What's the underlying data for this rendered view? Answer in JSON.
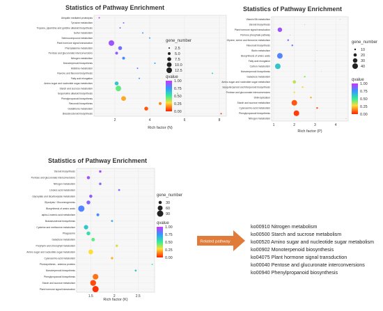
{
  "chart_data": [
    {
      "type": "scatter",
      "title": "Statistics of Pathway Enrichment",
      "xlabel": "Rich factor (N)",
      "xlim": [
        0.8,
        8.4
      ],
      "xticks": [
        2,
        4,
        6,
        8
      ],
      "categories": [
        "Ubiquitin mediated proteolysis",
        "Tyrosine metabolism",
        "Tropane, piperidine and pyridine alkaloid biosynthesis",
        "Sulfur metabolism",
        "Selenocompound metabolism",
        "Plant hormone signal transduction",
        "Phenylalanine metabolism",
        "Pentose and glucuronate interconversions",
        "Nitrogen metabolism",
        "Monoterpenoid biosynthesis",
        "Histidine metabolism",
        "Flavone and flavonol biosynthesis",
        "Fatty acid elongation",
        "Amino sugar and nucleotide sugar metabolism",
        "Starch and sucrose metabolism",
        "Isoquinoline alkaloid biosynthesis",
        "Phenylpropanoid biosynthesis",
        "Flavonoid biosynthesis",
        "Glutathione metabolism",
        "Brassinosteroid biosynthesis"
      ],
      "points": [
        {
          "x": 1.1,
          "size": 2.5,
          "q": 0.95
        },
        {
          "x": 2.5,
          "size": 2.5,
          "q": 0.9
        },
        {
          "x": 2.3,
          "size": 2.5,
          "q": 0.88
        },
        {
          "x": 3.6,
          "size": 2.5,
          "q": 0.8
        },
        {
          "x": 4.0,
          "size": 2.5,
          "q": 0.72
        },
        {
          "x": 1.8,
          "size": 12.5,
          "q": 0.92
        },
        {
          "x": 2.3,
          "size": 7.5,
          "q": 0.85
        },
        {
          "x": 2.1,
          "size": 5,
          "q": 0.9
        },
        {
          "x": 2.5,
          "size": 5,
          "q": 0.78
        },
        {
          "x": 4.3,
          "size": 2.5,
          "q": 0.75
        },
        {
          "x": 3.3,
          "size": 2.5,
          "q": 0.82
        },
        {
          "x": 7.6,
          "size": 2.5,
          "q": 0.6
        },
        {
          "x": 3.4,
          "size": 2.5,
          "q": 0.8
        },
        {
          "x": 2.1,
          "size": 7.5,
          "q": 0.62
        },
        {
          "x": 2.2,
          "size": 12.5,
          "q": 0.45
        },
        {
          "x": 5.6,
          "size": 2.5,
          "q": 0.4
        },
        {
          "x": 2.5,
          "size": 10,
          "q": 0.2
        },
        {
          "x": 4.6,
          "size": 5,
          "q": 0.15
        },
        {
          "x": 3.8,
          "size": 7.5,
          "q": 0.08
        },
        {
          "x": 8.1,
          "size": 2.5,
          "q": 0.02
        }
      ],
      "size_legend": {
        "title": "gene_number",
        "values": [
          2.5,
          5.0,
          7.5,
          10.0,
          12.5
        ]
      },
      "color_legend": {
        "title": "qvalue",
        "ticks": [
          "1.00",
          "0.75",
          "0.50",
          "0.25",
          "0.00"
        ]
      }
    },
    {
      "type": "scatter",
      "title": "Statistics of Pathway Enrichment",
      "xlabel": "Rich factor (P)",
      "xlim": [
        0.9,
        4.6
      ],
      "xticks": [
        1,
        2,
        3,
        4
      ],
      "categories": [
        "Vitamin B6 metabolism",
        "Steroid biosynthesis",
        "Plant hormone signal transduction",
        "Pentose phosphate pathway",
        "Glycine, serine and threonine metabolism",
        "Flavonoid biosynthesis",
        "Biotin metabolism",
        "Biosynthesis of amino acids",
        "Fatty acid elongation",
        "Carbon metabolism",
        "Monoterpenoid biosynthesis",
        "Galactose metabolism",
        "Amino sugar and nucleotide sugar metabolism",
        "Sesquiterpenoid and triterpenoid biosynthesis",
        "Pentose and glucuronate interconversions",
        "DNA replication",
        "Starch and sucrose metabolism",
        "Cyanoamino acid metabolism",
        "Phenylpropanoid biosynthesis",
        "Nitrogen metabolism"
      ],
      "points": [
        {
          "x": 4.2,
          "size": 5,
          "q": 0.95
        },
        {
          "x": 2.5,
          "size": 5,
          "q": 0.9
        },
        {
          "x": 1.3,
          "size": 30,
          "q": 0.92
        },
        {
          "x": 1.8,
          "size": 5,
          "q": 0.85
        },
        {
          "x": 1.7,
          "size": 10,
          "q": 0.86
        },
        {
          "x": 1.9,
          "size": 10,
          "q": 0.84
        },
        {
          "x": 3.1,
          "size": 5,
          "q": 0.82
        },
        {
          "x": 1.3,
          "size": 40,
          "q": 0.8
        },
        {
          "x": 3.0,
          "size": 5,
          "q": 0.78
        },
        {
          "x": 1.2,
          "size": 40,
          "q": 0.62
        },
        {
          "x": 3.3,
          "size": 5,
          "q": 0.55
        },
        {
          "x": 2.5,
          "size": 10,
          "q": 0.4
        },
        {
          "x": 2.0,
          "size": 20,
          "q": 0.35
        },
        {
          "x": 2.4,
          "size": 10,
          "q": 0.3
        },
        {
          "x": 2.0,
          "size": 10,
          "q": 0.28
        },
        {
          "x": 2.8,
          "size": 10,
          "q": 0.2
        },
        {
          "x": 2.0,
          "size": 40,
          "q": 0.08
        },
        {
          "x": 3.1,
          "size": 10,
          "q": 0.06
        },
        {
          "x": 2.1,
          "size": 40,
          "q": 0.04
        },
        {
          "x": 4.5,
          "size": 5,
          "q": 0.02
        }
      ],
      "size_legend": {
        "title": "gene_number",
        "values": [
          10,
          20,
          30,
          40
        ]
      },
      "color_legend": {
        "title": "qvalue",
        "ticks": [
          "1.00",
          "0.75",
          "0.50",
          "0.25",
          "0.00"
        ]
      }
    },
    {
      "type": "scatter",
      "title": "Statistics of Pathway Enrichment",
      "xlabel": "Rich factor (K)",
      "xlim": [
        1.2,
        2.85
      ],
      "xticks": [
        1.5,
        2.0,
        2.5
      ],
      "categories": [
        "Steroid biosynthesis",
        "Pentose and glucuronate interconversions",
        "Nitrogen metabolism",
        "Linoleic acid metabolism",
        "Glyoxylate and dicarboxylate metabolism",
        "Glycolysis / Gluconeogenesis",
        "Biosynthesis of amino acids",
        "alpha-Linolenic acid metabolism",
        "Brassinosteroid biosynthesis",
        "Cysteine and methionine metabolism",
        "Phagosome",
        "Galactose metabolism",
        "Porphyrin and chlorophyll metabolism",
        "Amino sugar and nucleotide sugar metabolism",
        "Cyanoamino acid metabolism",
        "Photosynthesis - antenna proteins",
        "Monoterpenoid biosynthesis",
        "Phenylpropanoid biosynthesis",
        "Starch and sucrose metabolism",
        "Plant hormone signal transduction"
      ],
      "points": [
        {
          "x": 1.7,
          "size": 20,
          "q": 0.95
        },
        {
          "x": 1.45,
          "size": 30,
          "q": 0.92
        },
        {
          "x": 1.7,
          "size": 20,
          "q": 0.88
        },
        {
          "x": 2.1,
          "size": 15,
          "q": 0.86
        },
        {
          "x": 1.5,
          "size": 30,
          "q": 0.9
        },
        {
          "x": 1.45,
          "size": 40,
          "q": 0.88
        },
        {
          "x": 1.3,
          "size": 90,
          "q": 0.8
        },
        {
          "x": 1.65,
          "size": 25,
          "q": 0.78
        },
        {
          "x": 1.95,
          "size": 15,
          "q": 0.7
        },
        {
          "x": 1.4,
          "size": 50,
          "q": 0.62
        },
        {
          "x": 1.45,
          "size": 40,
          "q": 0.55
        },
        {
          "x": 1.55,
          "size": 35,
          "q": 0.45
        },
        {
          "x": 2.05,
          "size": 20,
          "q": 0.32
        },
        {
          "x": 1.5,
          "size": 55,
          "q": 0.28
        },
        {
          "x": 1.95,
          "size": 20,
          "q": 0.22
        },
        {
          "x": 2.8,
          "size": 10,
          "q": 0.5
        },
        {
          "x": 2.45,
          "size": 15,
          "q": 0.6
        },
        {
          "x": 1.6,
          "size": 75,
          "q": 0.12
        },
        {
          "x": 1.55,
          "size": 80,
          "q": 0.06
        },
        {
          "x": 1.6,
          "size": 90,
          "q": 0.02
        }
      ],
      "size_legend": {
        "title": "gene_number",
        "values": [
          30,
          60,
          90
        ]
      },
      "color_legend": {
        "title": "qvalue",
        "ticks": [
          "1.00",
          "0.75",
          "0.50",
          "0.25",
          "0.00"
        ]
      }
    }
  ],
  "related": {
    "button_label": "Related pathway",
    "button_color": "#e07b39",
    "items": [
      "ko00910 Nitrogen metabolism",
      "ko00500 Starch and sucrose metabolism",
      "ko00520 Amino sugar and nucleotide sugar metabolism",
      "ko00902 Monoterpenoid biosynthesis",
      "ko04075 Plant hormone signal transduction",
      "ko00040 Pentose and glucuronate interconversions",
      "ko00940 Phenylpropanoid biosynthesis"
    ]
  }
}
